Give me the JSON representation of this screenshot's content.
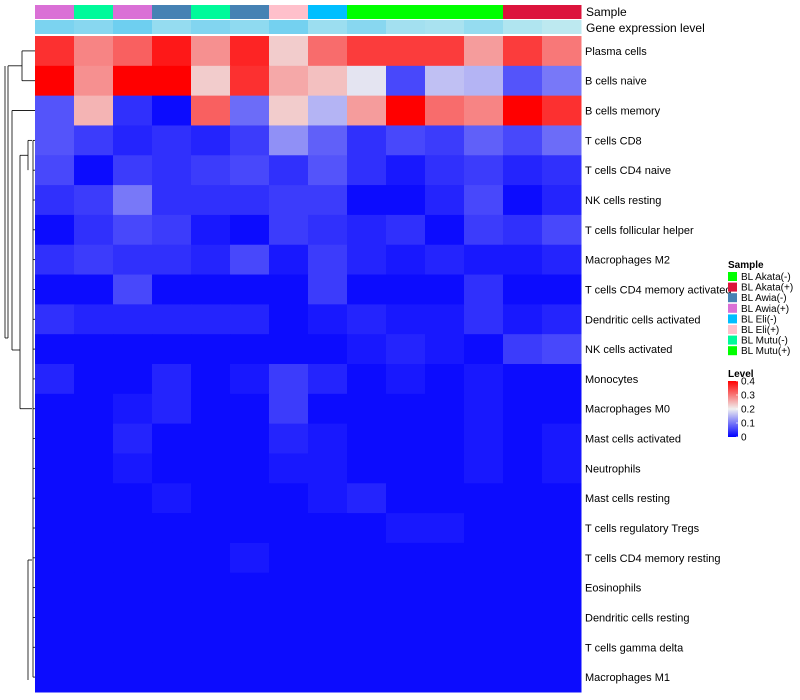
{
  "chart_data": {
    "type": "heatmap",
    "title": "",
    "annotation_titles": {
      "sample": "Sample",
      "expression": "Gene expression level"
    },
    "legend_sample": {
      "title": "Sample",
      "entries": [
        {
          "label": "BL Akata(-)",
          "color": "#00ff00"
        },
        {
          "label": "BL Akata(+)",
          "color": "#dc143c"
        },
        {
          "label": "BL Awia(-)",
          "color": "#4682b4"
        },
        {
          "label": "BL Awia(+)",
          "color": "#da70d6"
        },
        {
          "label": "BL Eli(-)",
          "color": "#00bfff"
        },
        {
          "label": "BL Eli(+)",
          "color": "#ffc0cb"
        },
        {
          "label": "BL Mutu(-)",
          "color": "#00fa9a"
        },
        {
          "label": "BL Mutu(+)",
          "color": "#00ff00"
        }
      ]
    },
    "legend_level": {
      "title": "Level",
      "min": 0,
      "max": 0.4,
      "ticks": [
        0,
        0.1,
        0.2,
        0.3,
        0.4
      ],
      "tick_labels": [
        "0",
        "0.1",
        "0.2",
        "0.3",
        "0.4"
      ]
    },
    "color_scale": {
      "low": "#0000ff",
      "mid": "#f0f0f0",
      "high": "#ff0000",
      "midpoint": 0.2
    },
    "columns": [
      {
        "sample": "BL Awia(+)",
        "expression": 0.2
      },
      {
        "sample": "BL Mutu(-)",
        "expression": 0.18
      },
      {
        "sample": "BL Awia(+)",
        "expression": 0.22
      },
      {
        "sample": "BL Awia(-)",
        "expression": 0.16
      },
      {
        "sample": "BL Mutu(-)",
        "expression": 0.19
      },
      {
        "sample": "BL Awia(-)",
        "expression": 0.17
      },
      {
        "sample": "BL Eli(+)",
        "expression": 0.21
      },
      {
        "sample": "BL Eli(-)",
        "expression": 0.15
      },
      {
        "sample": "BL Akata(-)",
        "expression": 0.18
      },
      {
        "sample": "BL Akata(-)",
        "expression": 0.14
      },
      {
        "sample": "BL Akata(-)",
        "expression": 0.13
      },
      {
        "sample": "BL Akata(-)",
        "expression": 0.16
      },
      {
        "sample": "BL Akata(+)",
        "expression": 0.12
      },
      {
        "sample": "BL Akata(+)",
        "expression": 0.1
      }
    ],
    "rows": [
      "Plasma cells",
      "B cells naive",
      "B cells memory",
      "T cells CD8",
      "T cells CD4 naive",
      "NK cells resting",
      "T cells follicular helper",
      "Macrophages M2",
      "T cells CD4 memory activated",
      "Dendritic cells activated",
      "NK cells activated",
      "Monocytes",
      "Macrophages M0",
      "Mast cells activated",
      "Neutrophils",
      "Mast cells resting",
      "T cells regulatory  Tregs",
      "T cells CD4 memory resting",
      "Eosinophils",
      "Dendritic cells resting",
      "T cells gamma delta",
      "Macrophages M1"
    ],
    "values": [
      [
        0.36,
        0.29,
        0.32,
        0.38,
        0.28,
        0.37,
        0.23,
        0.31,
        0.35,
        0.35,
        0.35,
        0.27,
        0.35,
        0.3
      ],
      [
        0.4,
        0.28,
        0.4,
        0.4,
        0.23,
        0.36,
        0.26,
        0.24,
        0.19,
        0.06,
        0.16,
        0.15,
        0.07,
        0.1
      ],
      [
        0.07,
        0.25,
        0.04,
        0.01,
        0.32,
        0.09,
        0.23,
        0.15,
        0.27,
        0.4,
        0.31,
        0.29,
        0.4,
        0.36
      ],
      [
        0.07,
        0.05,
        0.03,
        0.04,
        0.03,
        0.05,
        0.12,
        0.08,
        0.04,
        0.06,
        0.05,
        0.08,
        0.06,
        0.09
      ],
      [
        0.06,
        0.01,
        0.05,
        0.04,
        0.05,
        0.06,
        0.04,
        0.07,
        0.04,
        0.02,
        0.04,
        0.05,
        0.03,
        0.04
      ],
      [
        0.04,
        0.05,
        0.1,
        0.04,
        0.04,
        0.04,
        0.05,
        0.05,
        0.01,
        0.01,
        0.03,
        0.06,
        0.01,
        0.03
      ],
      [
        0.01,
        0.04,
        0.06,
        0.05,
        0.02,
        0.01,
        0.05,
        0.04,
        0.03,
        0.04,
        0.01,
        0.05,
        0.04,
        0.06
      ],
      [
        0.04,
        0.05,
        0.04,
        0.04,
        0.03,
        0.06,
        0.02,
        0.05,
        0.03,
        0.02,
        0.03,
        0.02,
        0.02,
        0.03
      ],
      [
        0.01,
        0.01,
        0.06,
        0.01,
        0.01,
        0.01,
        0.01,
        0.05,
        0.01,
        0.01,
        0.01,
        0.04,
        0.01,
        0.01
      ],
      [
        0.04,
        0.03,
        0.03,
        0.03,
        0.03,
        0.03,
        0.01,
        0.02,
        0.03,
        0.02,
        0.02,
        0.04,
        0.02,
        0.03
      ],
      [
        0.01,
        0.01,
        0.01,
        0.01,
        0.01,
        0.01,
        0.01,
        0.01,
        0.02,
        0.03,
        0.02,
        0.01,
        0.05,
        0.06
      ],
      [
        0.03,
        0.01,
        0.01,
        0.03,
        0.01,
        0.02,
        0.05,
        0.03,
        0.01,
        0.02,
        0.01,
        0.02,
        0.01,
        0.01
      ],
      [
        0.01,
        0.01,
        0.02,
        0.03,
        0.01,
        0.01,
        0.05,
        0.01,
        0.01,
        0.01,
        0.01,
        0.02,
        0.01,
        0.01
      ],
      [
        0.01,
        0.01,
        0.03,
        0.01,
        0.01,
        0.01,
        0.03,
        0.02,
        0.01,
        0.01,
        0.01,
        0.02,
        0.01,
        0.02
      ],
      [
        0.01,
        0.01,
        0.02,
        0.01,
        0.01,
        0.01,
        0.02,
        0.02,
        0.01,
        0.01,
        0.01,
        0.02,
        0.01,
        0.02
      ],
      [
        0.01,
        0.01,
        0.01,
        0.02,
        0.01,
        0.01,
        0.01,
        0.02,
        0.03,
        0.01,
        0.01,
        0.01,
        0.01,
        0.01
      ],
      [
        0.01,
        0.01,
        0.01,
        0.01,
        0.01,
        0.01,
        0.01,
        0.01,
        0.01,
        0.02,
        0.02,
        0.01,
        0.01,
        0.01
      ],
      [
        0.01,
        0.01,
        0.01,
        0.01,
        0.01,
        0.02,
        0.01,
        0.01,
        0.01,
        0.01,
        0.01,
        0.01,
        0.01,
        0.01
      ],
      [
        0.01,
        0.01,
        0.01,
        0.01,
        0.01,
        0.01,
        0.01,
        0.01,
        0.01,
        0.01,
        0.01,
        0.01,
        0.01,
        0.01
      ],
      [
        0.01,
        0.01,
        0.01,
        0.01,
        0.01,
        0.01,
        0.01,
        0.01,
        0.01,
        0.01,
        0.01,
        0.01,
        0.01,
        0.01
      ],
      [
        0.01,
        0.01,
        0.01,
        0.01,
        0.01,
        0.01,
        0.01,
        0.01,
        0.01,
        0.01,
        0.01,
        0.01,
        0.01,
        0.01
      ],
      [
        0.01,
        0.01,
        0.01,
        0.01,
        0.01,
        0.01,
        0.01,
        0.01,
        0.01,
        0.01,
        0.01,
        0.01,
        0.01,
        0.01
      ]
    ],
    "row_dendrogram": {
      "merges": [
        [
          0,
          1,
          0.38
        ],
        [
          2,
          -1,
          0.4
        ],
        [
          3,
          4,
          0.1
        ],
        [
          18,
          19,
          0.02
        ]
      ]
    }
  }
}
